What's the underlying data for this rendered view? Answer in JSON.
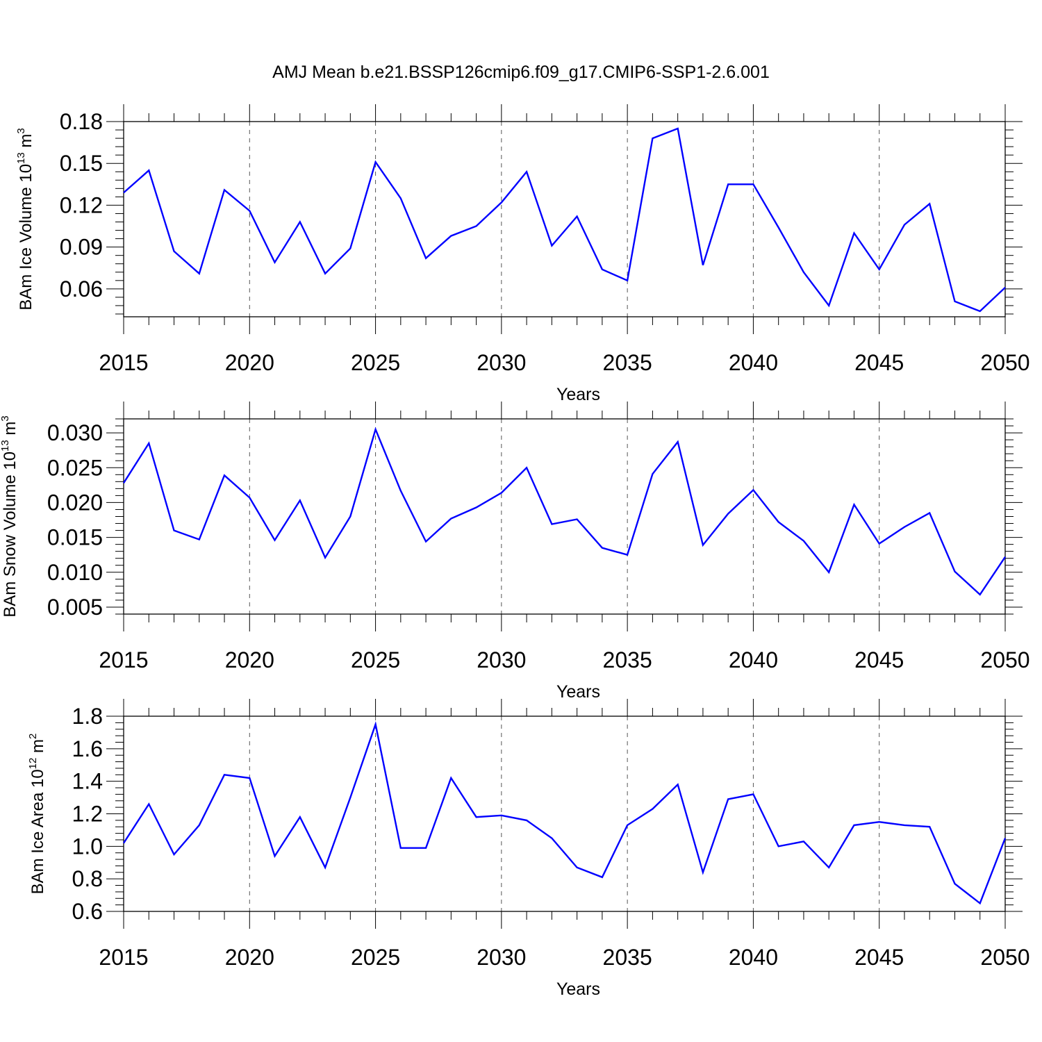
{
  "title": "AMJ Mean b.e21.BSSP126cmip6.f09_g17.CMIP6-SSP1-2.6.001",
  "chart_data": [
    {
      "type": "line",
      "title": "AMJ Mean b.e21.BSSP126cmip6.f09_g17.CMIP6-SSP1-2.6.001",
      "xlabel": "Years",
      "ylabel": {
        "text": "BAm Ice Volume 10",
        "sup": "13",
        "unit": " m",
        "unit_sup": "3"
      },
      "xlim": [
        2015,
        2050
      ],
      "ylim": [
        0.04,
        0.18
      ],
      "x_ticks": [
        2015,
        2020,
        2025,
        2030,
        2035,
        2040,
        2045,
        2050
      ],
      "y_ticks": [
        "0.06",
        "0.09",
        "0.12",
        "0.15",
        "0.18"
      ],
      "x": [
        2015,
        2016,
        2017,
        2018,
        2019,
        2020,
        2021,
        2022,
        2023,
        2024,
        2025,
        2026,
        2027,
        2028,
        2029,
        2030,
        2031,
        2032,
        2033,
        2034,
        2035,
        2036,
        2037,
        2038,
        2039,
        2040,
        2041,
        2042,
        2043,
        2044,
        2045,
        2046,
        2047,
        2048,
        2049,
        2050
      ],
      "series": [
        {
          "color": "#0000ff",
          "values": [
            0.129,
            0.145,
            0.087,
            0.071,
            0.131,
            0.116,
            0.079,
            0.108,
            0.071,
            0.089,
            0.151,
            0.125,
            0.082,
            0.098,
            0.105,
            0.122,
            0.144,
            0.091,
            0.112,
            0.074,
            0.066,
            0.168,
            0.175,
            0.077,
            0.135,
            0.135,
            0.104,
            0.072,
            0.048,
            0.1,
            0.074,
            0.106,
            0.121,
            0.051,
            0.044,
            0.061
          ]
        }
      ],
      "grid": "vertical dashed at major x ticks"
    },
    {
      "type": "line",
      "xlabel": "Years",
      "ylabel": {
        "text": "BAm Snow Volume 10",
        "sup": "13",
        "unit": " m",
        "unit_sup": "3"
      },
      "xlim": [
        2015,
        2050
      ],
      "ylim": [
        0.004,
        0.032
      ],
      "x_ticks": [
        2015,
        2020,
        2025,
        2030,
        2035,
        2040,
        2045,
        2050
      ],
      "y_ticks": [
        "0.005",
        "0.010",
        "0.015",
        "0.020",
        "0.025",
        "0.030"
      ],
      "x": [
        2015,
        2016,
        2017,
        2018,
        2019,
        2020,
        2021,
        2022,
        2023,
        2024,
        2025,
        2026,
        2027,
        2028,
        2029,
        2030,
        2031,
        2032,
        2033,
        2034,
        2035,
        2036,
        2037,
        2038,
        2039,
        2040,
        2041,
        2042,
        2043,
        2044,
        2045,
        2046,
        2047,
        2048,
        2049,
        2050
      ],
      "series": [
        {
          "color": "#0000ff",
          "values": [
            0.0228,
            0.0285,
            0.016,
            0.0147,
            0.0239,
            0.0207,
            0.0146,
            0.0203,
            0.0121,
            0.018,
            0.0305,
            0.0217,
            0.0144,
            0.0177,
            0.0193,
            0.0214,
            0.025,
            0.0169,
            0.0176,
            0.0135,
            0.0125,
            0.0241,
            0.0287,
            0.0139,
            0.0184,
            0.0218,
            0.0172,
            0.0145,
            0.01,
            0.0197,
            0.0141,
            0.0165,
            0.0185,
            0.0101,
            0.0068,
            0.0122
          ]
        }
      ],
      "grid": "vertical dashed at major x ticks"
    },
    {
      "type": "line",
      "xlabel": "Years",
      "ylabel": {
        "text": "BAm Ice Area 10",
        "sup": "12",
        "unit": " m",
        "unit_sup": "2"
      },
      "xlim": [
        2015,
        2050
      ],
      "ylim": [
        0.6,
        1.8
      ],
      "x_ticks": [
        2015,
        2020,
        2025,
        2030,
        2035,
        2040,
        2045,
        2050
      ],
      "y_ticks": [
        "0.6",
        "0.8",
        "1.0",
        "1.2",
        "1.4",
        "1.6",
        "1.8"
      ],
      "x": [
        2015,
        2016,
        2017,
        2018,
        2019,
        2020,
        2021,
        2022,
        2023,
        2024,
        2025,
        2026,
        2027,
        2028,
        2029,
        2030,
        2031,
        2032,
        2033,
        2034,
        2035,
        2036,
        2037,
        2038,
        2039,
        2040,
        2041,
        2042,
        2043,
        2044,
        2045,
        2046,
        2047,
        2048,
        2049,
        2050
      ],
      "series": [
        {
          "color": "#0000ff",
          "values": [
            1.02,
            1.26,
            0.95,
            1.13,
            1.44,
            1.42,
            0.94,
            1.18,
            0.87,
            1.3,
            1.75,
            0.99,
            0.99,
            1.42,
            1.18,
            1.19,
            1.16,
            1.05,
            0.87,
            0.81,
            1.13,
            1.23,
            1.38,
            0.84,
            1.29,
            1.32,
            1.0,
            1.03,
            0.87,
            1.13,
            1.15,
            1.13,
            1.12,
            0.77,
            0.65,
            1.05
          ]
        }
      ],
      "grid": "vertical dashed at major x ticks"
    }
  ]
}
